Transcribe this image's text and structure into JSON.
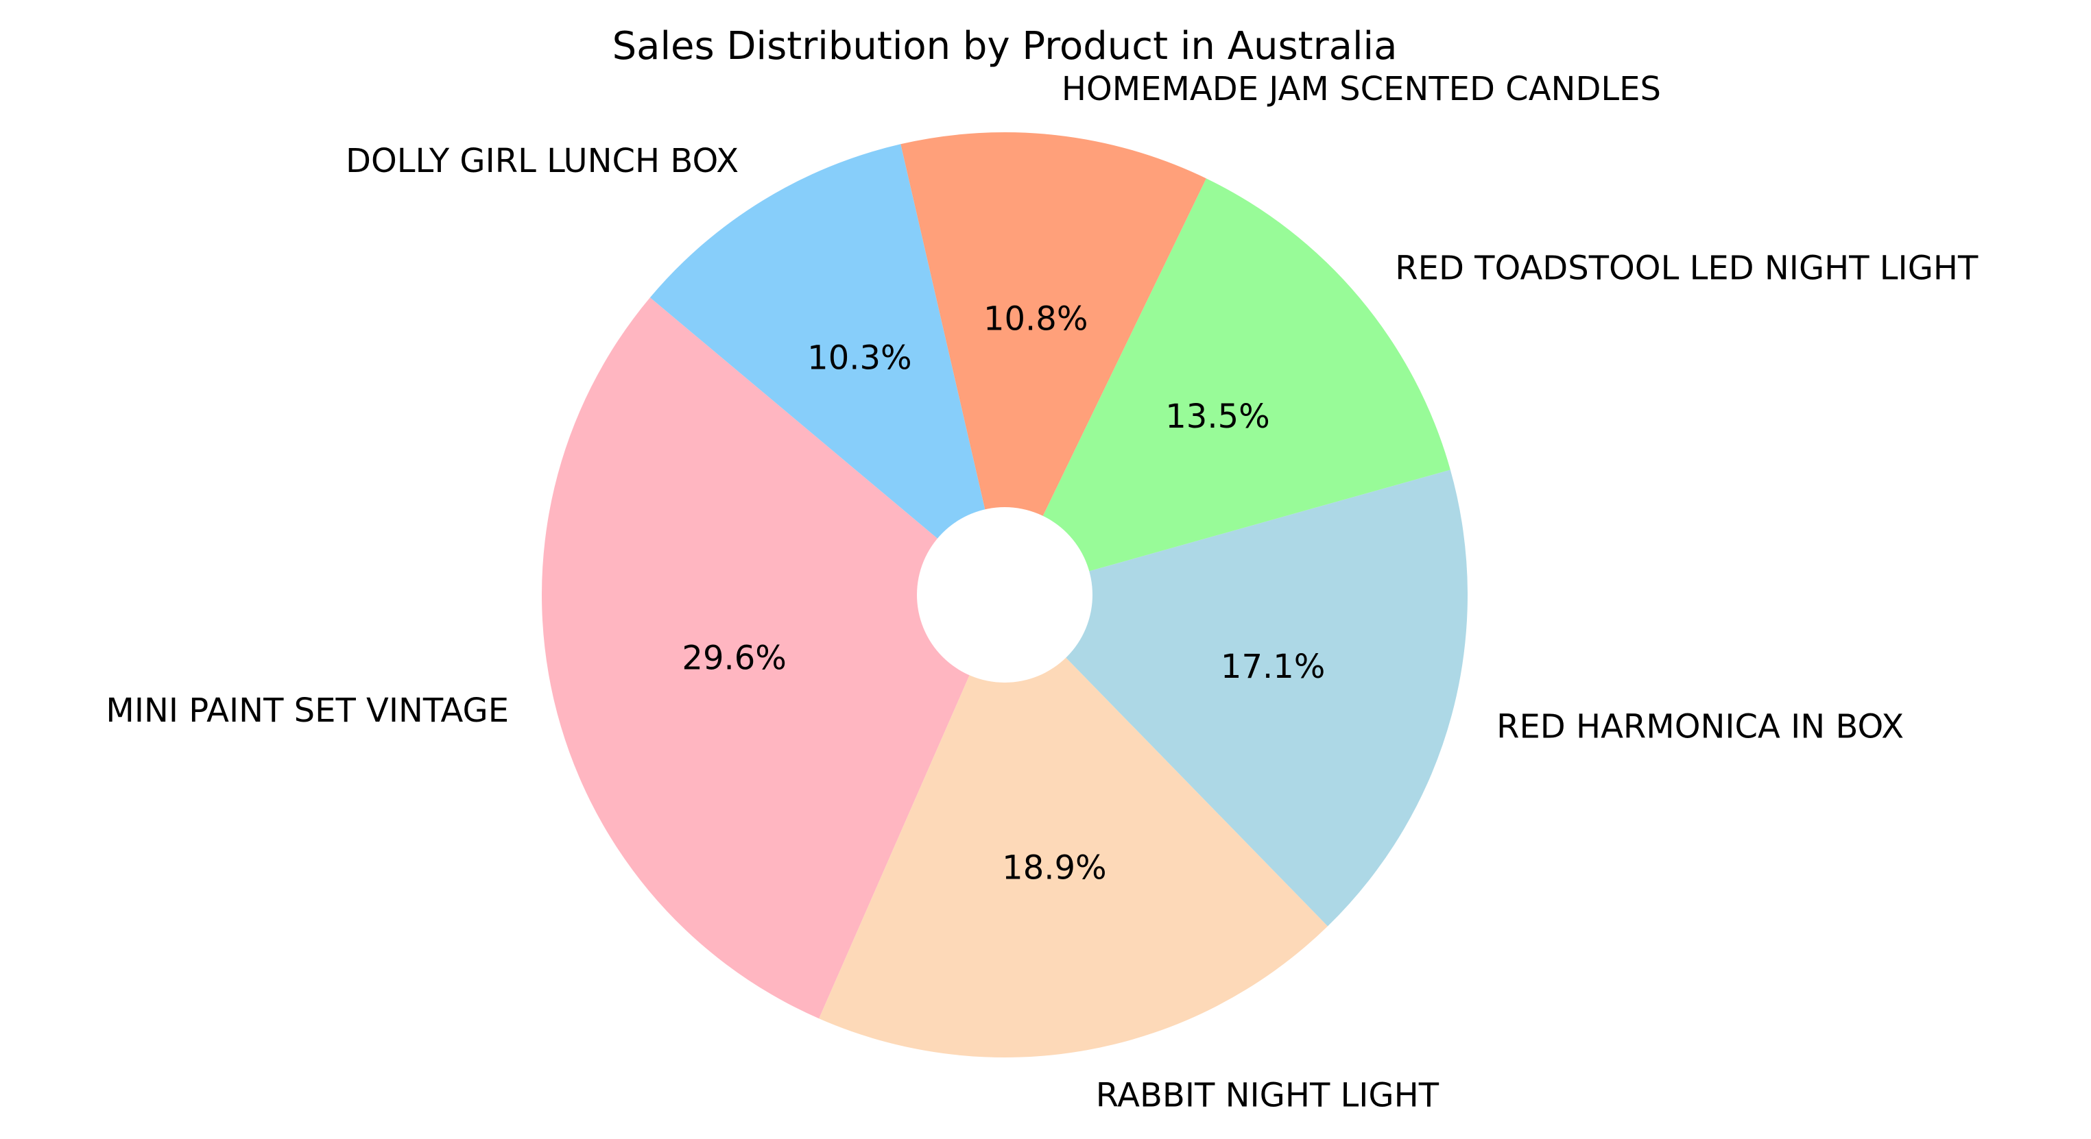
{
  "chart_data": {
    "type": "pie",
    "title": "Sales Distribution by Product in Australia",
    "donut": true,
    "slices": [
      {
        "label": "MINI PAINT SET VINTAGE",
        "percent_label": "29.6%",
        "value": 29.6,
        "color": "#ffb6c1"
      },
      {
        "label": "RABBIT NIGHT LIGHT",
        "percent_label": "18.9%",
        "value": 18.9,
        "color": "#fdd9b8"
      },
      {
        "label": "RED  HARMONICA IN BOX",
        "percent_label": "17.1%",
        "value": 17.1,
        "color": "#add8e6"
      },
      {
        "label": "RED TOADSTOOL LED NIGHT LIGHT",
        "percent_label": "13.5%",
        "value": 13.5,
        "color": "#98fb98"
      },
      {
        "label": "HOMEMADE JAM SCENTED CANDLES",
        "percent_label": "10.8%",
        "value": 10.8,
        "color": "#ffa07a"
      },
      {
        "label": "DOLLY GIRL LUNCH BOX",
        "percent_label": "10.3%",
        "value": 10.3,
        "color": "#87cefa"
      }
    ],
    "start_angle_deg": 140,
    "direction": "counterclockwise",
    "legend": "none"
  }
}
